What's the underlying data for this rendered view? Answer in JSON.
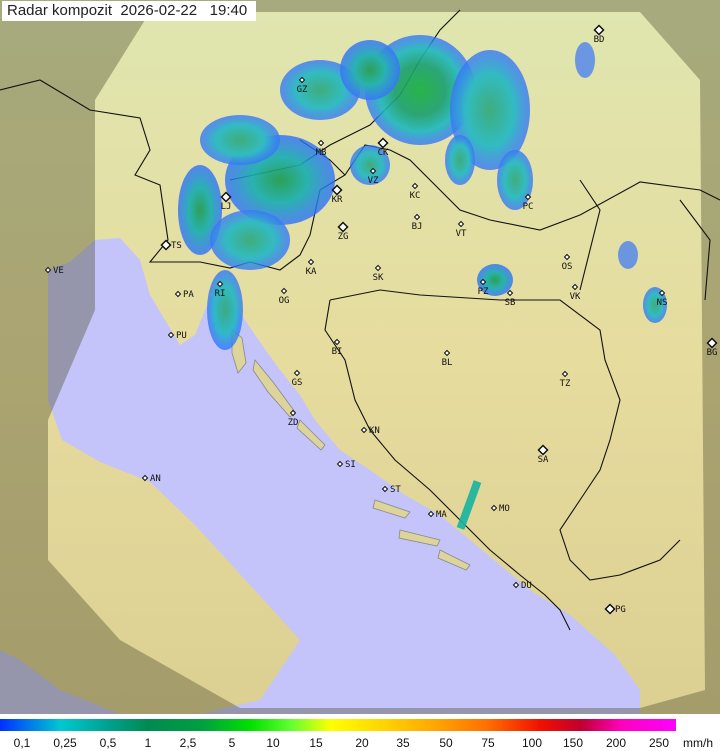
{
  "title": {
    "label": "Radar kompozit",
    "date": "2026-02-22",
    "time": "19:40"
  },
  "legend": {
    "ticks": [
      "0,1",
      "0,25",
      "0,5",
      "1",
      "2,5",
      "5",
      "10",
      "15",
      "20",
      "35",
      "50",
      "75",
      "100",
      "150",
      "200",
      "250"
    ],
    "unit": "mm/h"
  },
  "map": {
    "colors": {
      "sea": "#c4c4fa",
      "land_north": "#dfe6b0",
      "land_south": "#e6d89a",
      "outside_coverage": "#8c8a5c",
      "rain_light": "#2a6cff",
      "rain_mid": "#1ab4c0",
      "rain_heavy": "#1c9a50"
    },
    "cities": [
      "BD",
      "GZ",
      "MB",
      "CK",
      "VZ",
      "KR",
      "KC",
      "LJ",
      "BJ",
      "VT",
      "PC",
      "TS",
      "ZG",
      "VE",
      "RI",
      "KA",
      "SK",
      "OS",
      "PZ",
      "SB",
      "VK",
      "NS",
      "PA",
      "OG",
      "PU",
      "BI",
      "BL",
      "BG",
      "GS",
      "TZ",
      "ZD",
      "KN",
      "SA",
      "SI",
      "AN",
      "ST",
      "MO",
      "MA",
      "DU",
      "PG"
    ]
  }
}
